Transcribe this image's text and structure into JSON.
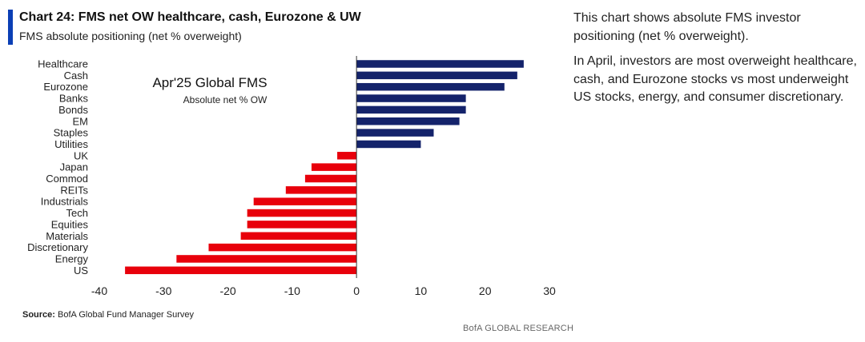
{
  "title": "Chart 24: FMS net OW healthcare, cash, Eurozone & UW",
  "subtitle": "FMS absolute positioning (net % overweight)",
  "source_label": "Source:",
  "source_text": "BofA Global Fund Manager Survey",
  "credit": "BofA GLOBAL RESEARCH",
  "commentary": {
    "p1": "This chart shows absolute FMS investor positioning (net % overweight).",
    "p2": "In April, investors are most overweight healthcare, cash, and Eurozone stocks vs most underweight US stocks, energy, and consumer discretionary."
  },
  "chart_data": {
    "type": "bar",
    "orientation": "horizontal",
    "annotation_title": "Apr'25 Global FMS",
    "annotation_subtitle": "Absolute net % OW",
    "categories": [
      "Healthcare",
      "Cash",
      "Eurozone",
      "Banks",
      "Bonds",
      "EM",
      "Staples",
      "Utilities",
      "UK",
      "Japan",
      "Commod",
      "REITs",
      "Industrials",
      "Tech",
      "Equities",
      "Materials",
      "Discretionary",
      "Energy",
      "US"
    ],
    "values": [
      26,
      25,
      23,
      17,
      17,
      16,
      12,
      10,
      -3,
      -7,
      -8,
      -11,
      -16,
      -17,
      -17,
      -18,
      -23,
      -28,
      -36
    ],
    "xlim": [
      -40,
      30
    ],
    "xticks": [
      "-40",
      "-30",
      "-20",
      "-10",
      "0",
      "10",
      "20",
      "30"
    ],
    "positive_color": "#14236b",
    "negative_color": "#e8000b",
    "grid": false
  }
}
